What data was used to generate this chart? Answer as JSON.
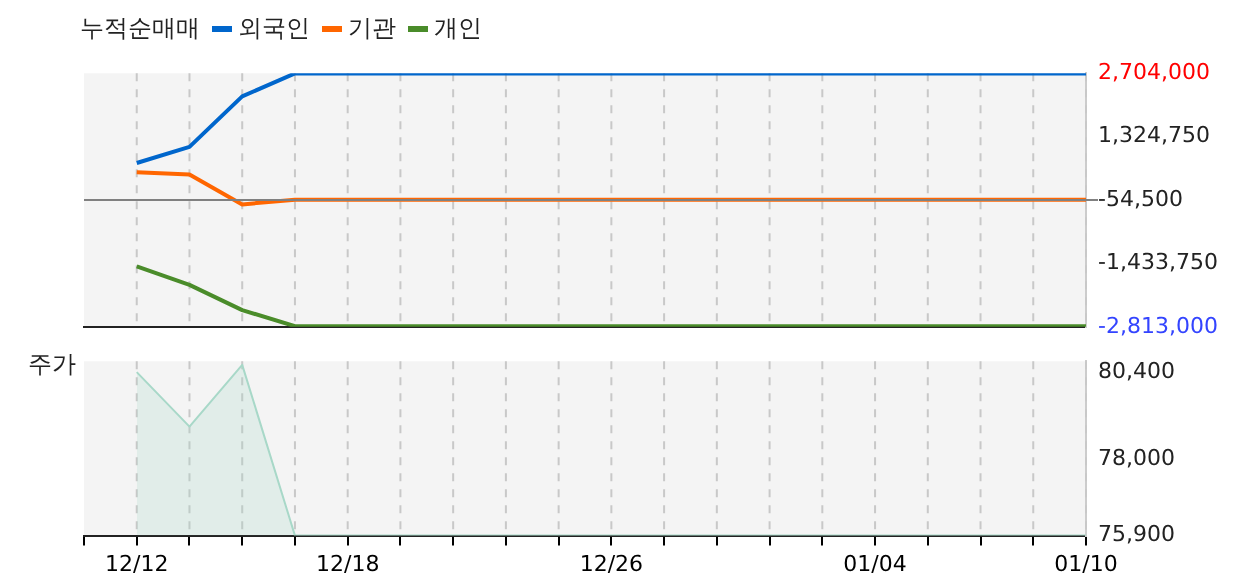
{
  "chart_data": [
    {
      "type": "line",
      "title": "누적순매매",
      "series": [
        {
          "name": "외국인",
          "color": "#0066cc",
          "values": [
            null,
            750000,
            1100000,
            2200000,
            2700000,
            2700000,
            2700000,
            2700000,
            2700000,
            2700000,
            2700000,
            2700000,
            2700000,
            2700000,
            2700000,
            2700000,
            2700000,
            2700000,
            2700000,
            2700000
          ]
        },
        {
          "name": "기관",
          "color": "#ff6600",
          "values": [
            null,
            550000,
            500000,
            -150000,
            -50000,
            -50000,
            -50000,
            -50000,
            -50000,
            -50000,
            -50000,
            -50000,
            -50000,
            -50000,
            -50000,
            -50000,
            -50000,
            -50000,
            -50000,
            -50000
          ]
        },
        {
          "name": "개인",
          "color": "#4a8c2a",
          "values": [
            null,
            -1500000,
            -1900000,
            -2450000,
            -2800000,
            -2800000,
            -2800000,
            -2800000,
            -2800000,
            -2800000,
            -2800000,
            -2800000,
            -2800000,
            -2800000,
            -2800000,
            -2800000,
            -2800000,
            -2800000,
            -2800000,
            -2800000
          ]
        }
      ],
      "ylim": [
        -2813000,
        2704000
      ],
      "yticks": [
        {
          "value": 2704000,
          "label": "2,704,000"
        },
        {
          "value": 1324750,
          "label": "1,324,750"
        },
        {
          "value": -54500,
          "label": "-54,500"
        },
        {
          "value": -1433750,
          "label": "-1,433,750"
        },
        {
          "value": -2813000,
          "label": "-2,813,000"
        }
      ],
      "ref_lines": [
        {
          "axis": "y",
          "value": -54500,
          "color": "#808080"
        }
      ],
      "grid": "x",
      "legend": "top left",
      "tick_labels": "y"
    },
    {
      "type": "area",
      "ylabel": "주가",
      "categories": [
        null,
        "12/12",
        null,
        null,
        null,
        "12/18",
        null,
        null,
        null,
        null,
        "12/26",
        null,
        null,
        null,
        null,
        "01/04",
        null,
        null,
        null,
        "01/10"
      ],
      "series": [
        {
          "color": "#a8d8c8",
          "values": [
            null,
            80400,
            78900,
            80600,
            75900,
            75900,
            75900,
            75900,
            75900,
            75900,
            75900,
            75900,
            75900,
            75900,
            75900,
            75900,
            75900,
            75900,
            75900,
            75900
          ]
        }
      ],
      "ylim": [
        75900,
        80700
      ],
      "yticks": [
        {
          "value": 80400,
          "label": "80,400"
        },
        {
          "value": 78000,
          "label": "78,000"
        },
        {
          "value": 75900,
          "label": "75,900"
        }
      ],
      "grid": "x"
    }
  ]
}
